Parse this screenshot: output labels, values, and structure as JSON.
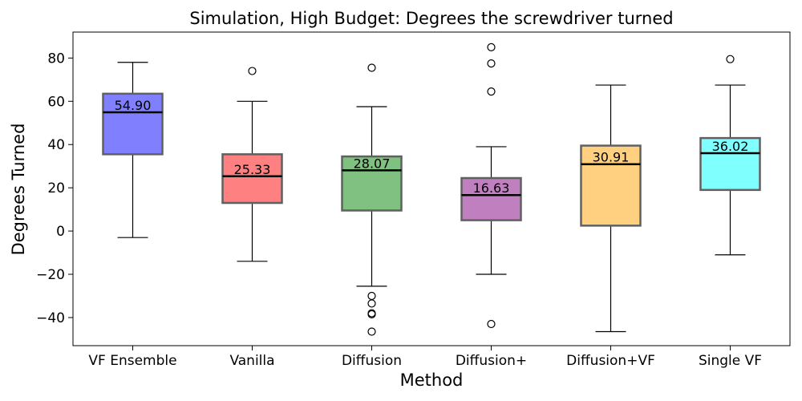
{
  "chart_data": {
    "type": "box",
    "title": "Simulation, High Budget: Degrees the screwdriver turned",
    "xlabel": "Method",
    "ylabel": "Degrees Turned",
    "ylim": [
      -53,
      92
    ],
    "yticks": [
      -40,
      -20,
      0,
      20,
      40,
      60,
      80
    ],
    "grid": false,
    "categories": [
      "VF Ensemble",
      "Vanilla",
      "Diffusion",
      "Diffusion+",
      "Diffusion+VF",
      "Single VF"
    ],
    "boxes": [
      {
        "label": "VF Ensemble",
        "whisker_low": -3,
        "q1": 35.5,
        "median": 54.9,
        "q3": 63.5,
        "whisker_high": 78,
        "median_label": "54.90",
        "fliers": [],
        "color": "#8080ff"
      },
      {
        "label": "Vanilla",
        "whisker_low": -14,
        "q1": 13,
        "median": 25.33,
        "q3": 35.5,
        "whisker_high": 60,
        "median_label": "25.33",
        "fliers": [
          74
        ],
        "color": "#ff8080"
      },
      {
        "label": "Diffusion",
        "whisker_low": -25.5,
        "q1": 9.5,
        "median": 28.07,
        "q3": 34.5,
        "whisker_high": 57.5,
        "median_label": "28.07",
        "fliers": [
          75.5,
          -30,
          -33.5,
          -38,
          -38.5,
          -46.5
        ],
        "color": "#80c080"
      },
      {
        "label": "Diffusion+",
        "whisker_low": -20,
        "q1": 5,
        "median": 16.63,
        "q3": 24.5,
        "whisker_high": 39,
        "median_label": "16.63",
        "fliers": [
          85,
          77.5,
          64.5,
          -43
        ],
        "color": "#c080c0"
      },
      {
        "label": "Diffusion+VF",
        "whisker_low": -46.5,
        "q1": 2.5,
        "median": 30.91,
        "q3": 39.5,
        "whisker_high": 67.5,
        "median_label": "30.91",
        "fliers": [],
        "color": "#ffd080"
      },
      {
        "label": "Single VF",
        "whisker_low": -11,
        "q1": 19,
        "median": 36.02,
        "q3": 43,
        "whisker_high": 67.5,
        "median_label": "36.02",
        "fliers": [
          79.5
        ],
        "color": "#80ffff"
      }
    ]
  }
}
